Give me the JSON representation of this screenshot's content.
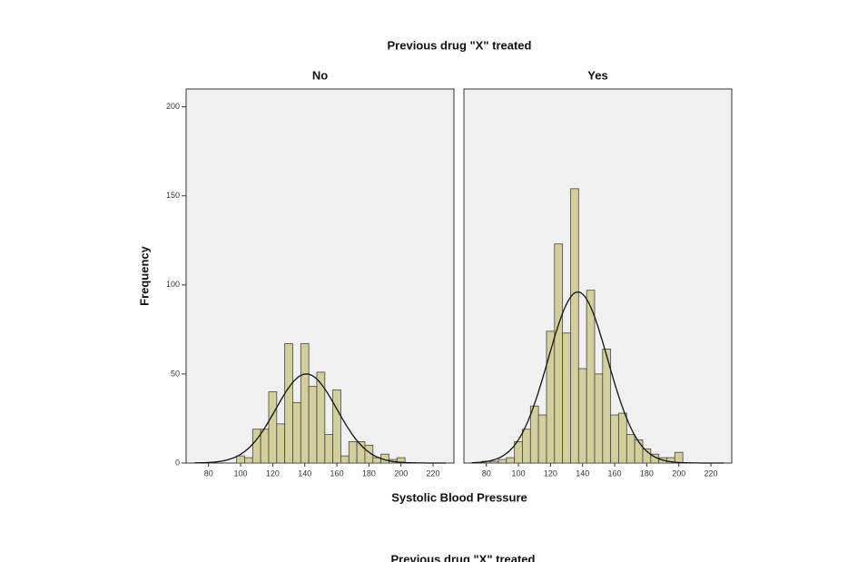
{
  "chart_data": {
    "type": "histogram",
    "title": "Previous drug \"X\" treated",
    "xlabel": "Systolic Blood Pressure",
    "ylabel": "Frequency",
    "bins": [
      77.5,
      82.5,
      87.5,
      92.5,
      97.5,
      102.5,
      107.5,
      112.5,
      117.5,
      122.5,
      127.5,
      132.5,
      137.5,
      142.5,
      147.5,
      152.5,
      157.5,
      162.5,
      167.5,
      172.5,
      177.5,
      182.5,
      187.5,
      192.5,
      197.5,
      202.5,
      207.5
    ],
    "series": [
      {
        "name": "No",
        "color": "#d3cf9c",
        "values": [
          0,
          0,
          0,
          0,
          4,
          3,
          19,
          19,
          40,
          22,
          67,
          34,
          67,
          43,
          51,
          16,
          41,
          4,
          12,
          12,
          10,
          3,
          5,
          2,
          3,
          0
        ]
      },
      {
        "name": "Yes",
        "color": "#d3cf9c",
        "values": [
          1,
          1,
          2,
          3,
          12,
          19,
          32,
          27,
          74,
          123,
          73,
          154,
          53,
          97,
          50,
          64,
          27,
          28,
          16,
          13,
          8,
          5,
          3,
          3,
          6,
          0
        ]
      }
    ],
    "xlim": [
      66,
      233
    ],
    "xticks": [
      80,
      100,
      120,
      140,
      160,
      180,
      200,
      220
    ],
    "ylim": [
      0,
      210
    ],
    "yticks": [
      0,
      50,
      100,
      150,
      200
    ],
    "background": "#f0f0f0",
    "curve_color": "#111111"
  },
  "next_title": "Previous drug \"X\" treated"
}
